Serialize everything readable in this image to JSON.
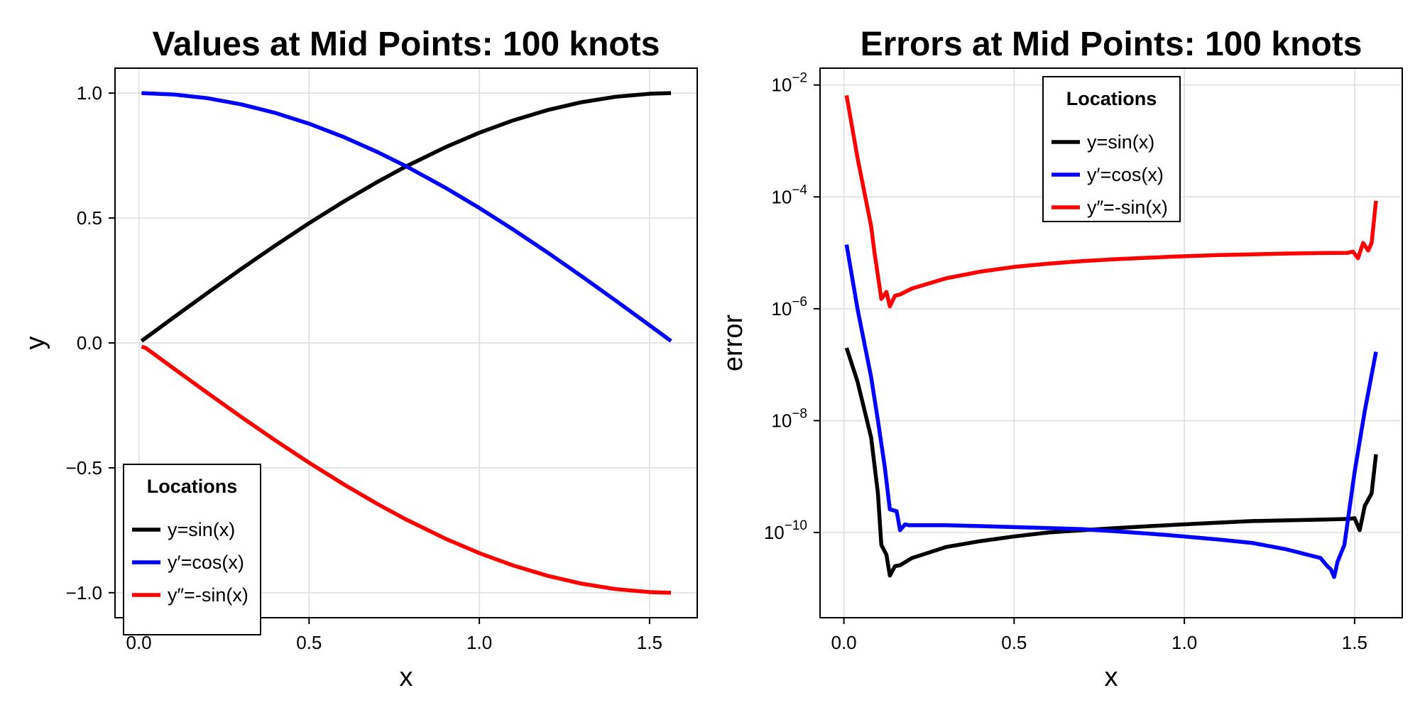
{
  "colors": {
    "black": "#000000",
    "blue": "#0000ff",
    "red": "#ff0000"
  },
  "chart_data": [
    {
      "type": "line",
      "title": "Values at Mid Points: 100 knots",
      "xlabel": "x",
      "ylabel": "y",
      "xlim": [
        -0.07,
        1.64
      ],
      "ylim": [
        -1.1,
        1.1
      ],
      "yscale": "linear",
      "xticks": [
        0.0,
        0.5,
        1.0,
        1.5
      ],
      "xtick_labels": [
        "0.0",
        "0.5",
        "1.0",
        "1.5"
      ],
      "yticks": [
        -1.0,
        -0.5,
        0.0,
        0.5,
        1.0
      ],
      "ytick_labels": [
        "−1.0",
        "−0.5",
        "0.0",
        "0.5",
        "1.0"
      ],
      "grid": true,
      "legend": {
        "title": "Locations",
        "position": "bottom-left"
      },
      "series": [
        {
          "name": "y=sin(x)",
          "color": "#000000",
          "x": [
            0.0079,
            0.1,
            0.2,
            0.3,
            0.4,
            0.5,
            0.6,
            0.7,
            0.7854,
            0.9,
            1.0,
            1.1,
            1.2,
            1.3,
            1.4,
            1.5,
            1.5629
          ],
          "y": [
            0.0079,
            0.0998,
            0.1987,
            0.2955,
            0.3894,
            0.4794,
            0.5646,
            0.6442,
            0.7071,
            0.7833,
            0.8415,
            0.8912,
            0.932,
            0.9636,
            0.9854,
            0.9975,
            1.0
          ]
        },
        {
          "name": "y′=cos(x)",
          "color": "#0000ff",
          "x": [
            0.0079,
            0.1,
            0.2,
            0.3,
            0.4,
            0.5,
            0.6,
            0.7,
            0.7854,
            0.9,
            1.0,
            1.1,
            1.2,
            1.3,
            1.4,
            1.5,
            1.5629
          ],
          "y": [
            1.0,
            0.995,
            0.9801,
            0.9553,
            0.9211,
            0.8776,
            0.8253,
            0.7648,
            0.7071,
            0.6216,
            0.5403,
            0.4536,
            0.3624,
            0.2675,
            0.17,
            0.0707,
            0.0079
          ]
        },
        {
          "name": "y″=-sin(x)",
          "color": "#ff0000",
          "x": [
            0.0079,
            0.02,
            0.1,
            0.2,
            0.3,
            0.4,
            0.5,
            0.6,
            0.7,
            0.7854,
            0.9,
            1.0,
            1.1,
            1.2,
            1.3,
            1.4,
            1.5,
            1.5629
          ],
          "y": [
            -0.015,
            -0.02,
            -0.0998,
            -0.1987,
            -0.2955,
            -0.3894,
            -0.4794,
            -0.5646,
            -0.6442,
            -0.7071,
            -0.7833,
            -0.8415,
            -0.8912,
            -0.932,
            -0.9636,
            -0.9854,
            -0.9975,
            -1.0
          ]
        }
      ]
    },
    {
      "type": "line",
      "title": "Errors at Mid Points: 100 knots",
      "xlabel": "x",
      "ylabel": "error",
      "xlim": [
        -0.07,
        1.64
      ],
      "ylim": [
        3e-12,
        0.02
      ],
      "yscale": "log",
      "xticks": [
        0.0,
        0.5,
        1.0,
        1.5
      ],
      "xtick_labels": [
        "0.0",
        "0.5",
        "1.0",
        "1.5"
      ],
      "yticks": [
        1e-10,
        1e-08,
        1e-06,
        0.0001,
        0.01
      ],
      "ytick_labels": [
        {
          "base": "10",
          "exp": "−10"
        },
        {
          "base": "10",
          "exp": "−8"
        },
        {
          "base": "10",
          "exp": "−6"
        },
        {
          "base": "10",
          "exp": "−4"
        },
        {
          "base": "10",
          "exp": "−2"
        }
      ],
      "grid": true,
      "legend": {
        "title": "Locations",
        "position": "top-center"
      },
      "series": [
        {
          "name": "y=sin(x)",
          "color": "#000000",
          "x": [
            0.0079,
            0.04,
            0.08,
            0.1,
            0.11,
            0.125,
            0.135,
            0.15,
            0.165,
            0.2,
            0.3,
            0.4,
            0.5,
            0.6,
            0.7,
            0.8,
            0.9,
            1.0,
            1.1,
            1.2,
            1.3,
            1.4,
            1.48,
            1.5,
            1.515,
            1.53,
            1.55,
            1.5629
          ],
          "y": [
            2e-07,
            5e-08,
            5e-09,
            5e-10,
            6e-11,
            4e-11,
            1.7e-11,
            2.5e-11,
            2.6e-11,
            3.5e-11,
            5.5e-11,
            7e-11,
            8.5e-11,
            1e-10,
            1.1e-10,
            1.2e-10,
            1.3e-10,
            1.4e-10,
            1.5e-10,
            1.6e-10,
            1.65e-10,
            1.7e-10,
            1.75e-10,
            1.8e-10,
            1.1e-10,
            3e-10,
            5e-10,
            2.5e-09
          ]
        },
        {
          "name": "y′=cos(x)",
          "color": "#0000ff",
          "x": [
            0.0079,
            0.04,
            0.08,
            0.1,
            0.12,
            0.135,
            0.155,
            0.165,
            0.18,
            0.19,
            0.3,
            0.4,
            0.5,
            0.6,
            0.7,
            0.8,
            0.9,
            1.0,
            1.1,
            1.2,
            1.3,
            1.4,
            1.42,
            1.43,
            1.44,
            1.45,
            1.47,
            1.5,
            1.53,
            1.5629
          ],
          "y": [
            1.4e-05,
            1e-06,
            6e-08,
            1e-08,
            1.5e-09,
            2.6e-10,
            2.4e-10,
            1.1e-10,
            1.4e-10,
            1.35e-10,
            1.35e-10,
            1.3e-10,
            1.25e-10,
            1.2e-10,
            1.15e-10,
            1.05e-10,
            9.5e-11,
            8.5e-11,
            7.5e-11,
            6.5e-11,
            5e-11,
            3.5e-11,
            2.5e-11,
            2.2e-11,
            1.6e-11,
            3e-11,
            6e-11,
            1.2e-09,
            1.5e-08,
            1.7e-07
          ]
        },
        {
          "name": "y″=-sin(x)",
          "color": "#ff0000",
          "x": [
            0.0079,
            0.04,
            0.08,
            0.09,
            0.11,
            0.125,
            0.135,
            0.15,
            0.165,
            0.2,
            0.3,
            0.4,
            0.5,
            0.6,
            0.7,
            0.8,
            0.9,
            1.0,
            1.1,
            1.2,
            1.3,
            1.4,
            1.48,
            1.495,
            1.51,
            1.525,
            1.54,
            1.55,
            1.5629
          ],
          "y": [
            0.0065,
            0.0005,
            3e-05,
            1e-05,
            1.5e-06,
            2e-06,
            1.1e-06,
            1.7e-06,
            1.8e-06,
            2.3e-06,
            3.5e-06,
            4.6e-06,
            5.6e-06,
            6.4e-06,
            7.1e-06,
            7.7e-06,
            8.2e-06,
            8.7e-06,
            9.1e-06,
            9.4e-06,
            9.7e-06,
            9.9e-06,
            1e-05,
            1.05e-05,
            8e-06,
            1.5e-05,
            1.1e-05,
            1.5e-05,
            8.5e-05
          ]
        }
      ]
    }
  ]
}
